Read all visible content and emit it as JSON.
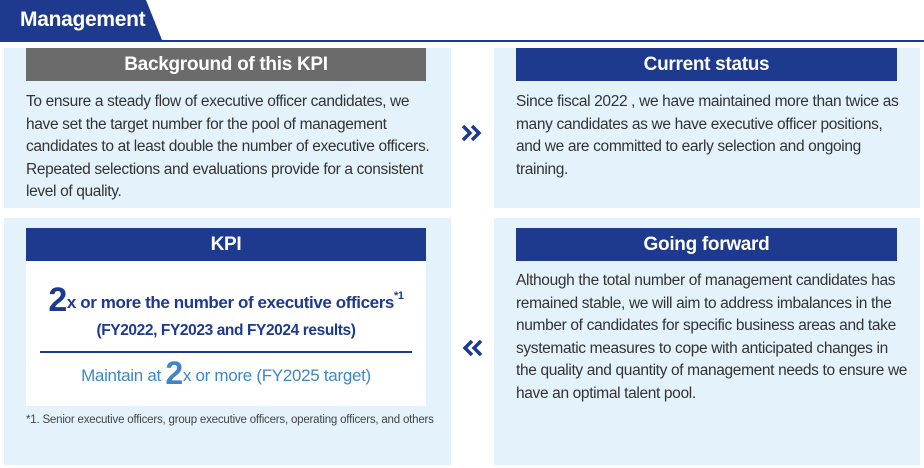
{
  "section": {
    "title": "Management"
  },
  "background": {
    "heading": "Background of this KPI",
    "text": "To ensure a steady flow of executive officer candidates, we have set the target number for the pool of management candidates to at least double the number of executive officers. Repeated selections and evaluations provide for a consistent level of quality."
  },
  "current_status": {
    "heading": "Current status",
    "text": "Since fiscal 2022 , we have maintained more than twice as many candidates as we have executive officer positions, and we are committed to early selection and ongoing training."
  },
  "kpi": {
    "heading": "KPI",
    "main_number": "2",
    "main_text": "x or more the number of executive officers",
    "main_footnote_mark": "*1",
    "results": "(FY2022, FY2023 and FY2024 results)",
    "target_prefix": "Maintain at ",
    "target_number": "2",
    "target_suffix": "x or more (FY2025 target)"
  },
  "footnote": {
    "text": "*1. Senior executive officers, group executive officers, operating officers, and others"
  },
  "going_forward": {
    "heading": "Going forward",
    "text": "Although the total number of management candidates has remained stable, we will aim to address imbalances in the number of candidates for specific business areas and take systematic measures to cope with anticipated changes in the quality and quantity of management needs to ensure we have an optimal talent pool."
  },
  "icons": {
    "flow_right": "double-chevron-right-icon",
    "flow_left": "double-chevron-left-icon"
  },
  "colors": {
    "navy": "#1d3a8f",
    "gray_bar": "#6b6b6b",
    "panel_bg": "#e3f2fb",
    "accent_blue": "#3f86c8"
  }
}
